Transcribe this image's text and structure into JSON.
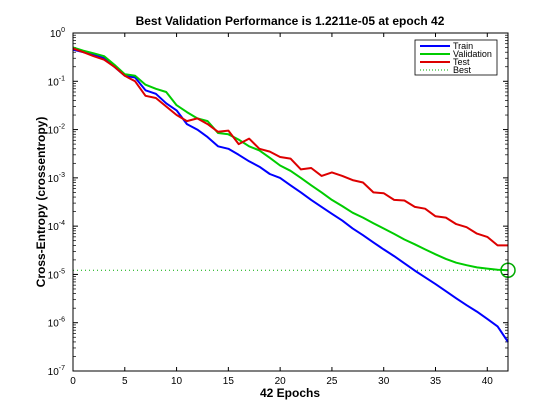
{
  "chart_data": {
    "type": "line",
    "title": "Best Validation Performance is 1.2211e-05 at epoch 42",
    "xlabel": "42 Epochs",
    "ylabel": "Cross-Entropy  (crossentropy)",
    "xlim": [
      0,
      42
    ],
    "ylim": [
      1e-07,
      1
    ],
    "yscale": "log",
    "grid": false,
    "legend_position": "top-right",
    "x_ticks": [
      0,
      5,
      10,
      15,
      20,
      25,
      30,
      35,
      40
    ],
    "y_ticks": [
      {
        "value": 1e-07,
        "base": "10",
        "exp": "-7"
      },
      {
        "value": 1e-06,
        "base": "10",
        "exp": "-6"
      },
      {
        "value": 1e-05,
        "base": "10",
        "exp": "-5"
      },
      {
        "value": 0.0001,
        "base": "10",
        "exp": "-4"
      },
      {
        "value": 0.001,
        "base": "10",
        "exp": "-3"
      },
      {
        "value": 0.01,
        "base": "10",
        "exp": "-2"
      },
      {
        "value": 0.1,
        "base": "10",
        "exp": "-1"
      },
      {
        "value": 1,
        "base": "10",
        "exp": "0"
      }
    ],
    "x": [
      0,
      1,
      2,
      3,
      4,
      5,
      6,
      7,
      8,
      9,
      10,
      11,
      12,
      13,
      14,
      15,
      16,
      17,
      18,
      19,
      20,
      21,
      22,
      23,
      24,
      25,
      26,
      27,
      28,
      29,
      30,
      31,
      32,
      33,
      34,
      35,
      36,
      37,
      38,
      39,
      40,
      41,
      42
    ],
    "series": [
      {
        "name": "Train",
        "color": "#0000ff",
        "style": "solid",
        "values": [
          0.45,
          0.4,
          0.35,
          0.3,
          0.2,
          0.13,
          0.12,
          0.065,
          0.055,
          0.035,
          0.025,
          0.013,
          0.01,
          0.007,
          0.0045,
          0.004,
          0.003,
          0.0022,
          0.0017,
          0.0012,
          0.001,
          0.0007,
          0.0005,
          0.00035,
          0.00025,
          0.00018,
          0.00013,
          9e-05,
          6.5e-05,
          4.6e-05,
          3.3e-05,
          2.4e-05,
          1.7e-05,
          1.2e-05,
          8.7e-06,
          6.3e-06,
          4.5e-06,
          3.2e-06,
          2.3e-06,
          1.7e-06,
          1.2e-06,
          8.4e-07,
          4e-07
        ]
      },
      {
        "name": "Validation",
        "color": "#00cc00",
        "style": "solid",
        "values": [
          0.5,
          0.43,
          0.38,
          0.33,
          0.22,
          0.14,
          0.13,
          0.085,
          0.07,
          0.06,
          0.032,
          0.023,
          0.017,
          0.015,
          0.0085,
          0.008,
          0.0062,
          0.0045,
          0.0037,
          0.0026,
          0.0018,
          0.0014,
          0.001,
          0.0007,
          0.0005,
          0.00035,
          0.00026,
          0.00019,
          0.00015,
          0.000115,
          8.92e-05,
          6.9e-05,
          5.3e-05,
          4.2e-05,
          3.3e-05,
          2.61e-05,
          2.1e-05,
          1.75e-05,
          1.55e-05,
          1.4e-05,
          1.32e-05,
          1.25e-05,
          1.22e-05
        ]
      },
      {
        "name": "Test",
        "color": "#dd0000",
        "style": "solid",
        "values": [
          0.48,
          0.4,
          0.33,
          0.28,
          0.2,
          0.13,
          0.1,
          0.05,
          0.045,
          0.03,
          0.02,
          0.015,
          0.017,
          0.013,
          0.009,
          0.0095,
          0.005,
          0.0065,
          0.004,
          0.0035,
          0.0027,
          0.0025,
          0.0015,
          0.0016,
          0.0011,
          0.0013,
          0.0011,
          0.0009,
          0.0008,
          0.0005,
          0.00048,
          0.00035,
          0.00034,
          0.00025,
          0.00023,
          0.00016,
          0.00015,
          0.00011,
          9.5e-05,
          7e-05,
          6e-05,
          4e-05,
          4e-05
        ]
      },
      {
        "name": "Best",
        "color": "#00aa00",
        "style": "dotted"
      }
    ],
    "best": {
      "epoch": 42,
      "value": 1.2211e-05
    }
  }
}
